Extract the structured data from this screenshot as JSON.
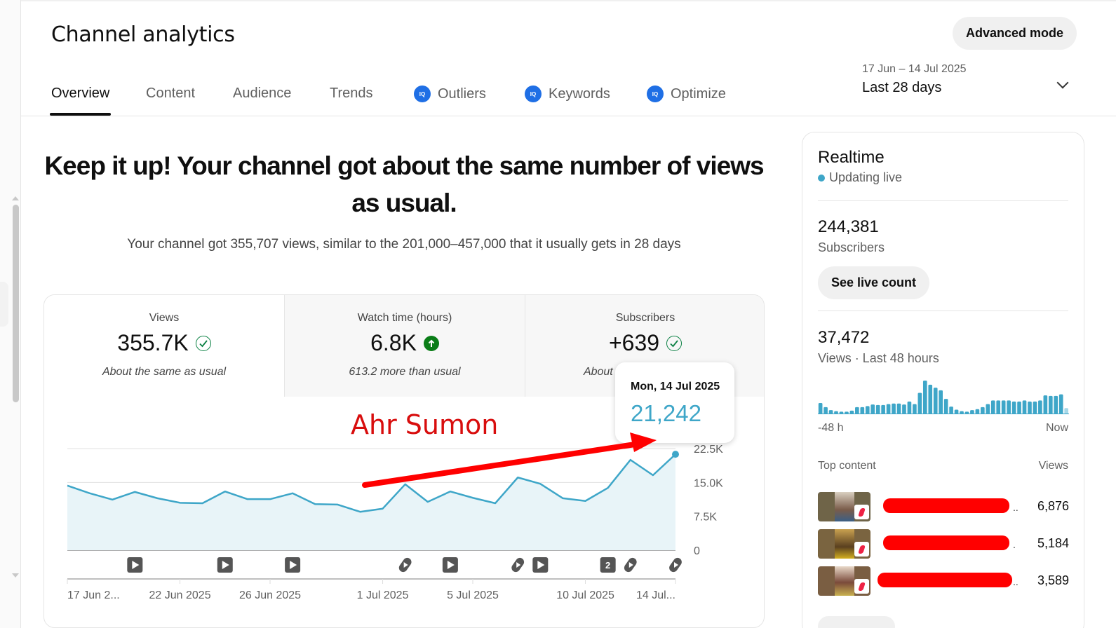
{
  "header": {
    "title": "Channel analytics",
    "advanced_mode_label": "Advanced mode"
  },
  "tabs": [
    {
      "label": "Overview",
      "active": true,
      "vidiq": false
    },
    {
      "label": "Content",
      "active": false,
      "vidiq": false
    },
    {
      "label": "Audience",
      "active": false,
      "vidiq": false
    },
    {
      "label": "Trends",
      "active": false,
      "vidiq": false
    },
    {
      "label": "Outliers",
      "active": false,
      "vidiq": true
    },
    {
      "label": "Keywords",
      "active": false,
      "vidiq": true
    },
    {
      "label": "Optimize",
      "active": false,
      "vidiq": true
    }
  ],
  "vidiq_badge": "IQ",
  "date_picker": {
    "range": "17 Jun – 14 Jul 2025",
    "label": "Last 28 days"
  },
  "summary": {
    "headline": "Keep it up! Your channel got about the same number of views as usual.",
    "subline": "Your channel got 355,707 views, similar to the 201,000–457,000 that it usually gets in 28 days"
  },
  "metrics": [
    {
      "label": "Views",
      "value": "355.7K",
      "status_icon": "check-circle-icon",
      "note": "About the same as usual"
    },
    {
      "label": "Watch time (hours)",
      "value": "6.8K",
      "status_icon": "arrow-up-circle-icon",
      "note": "613.2 more than usual"
    },
    {
      "label": "Subscribers",
      "value": "+639",
      "status_icon": "check-circle-icon",
      "note": "About the same as usual"
    }
  ],
  "tooltip": {
    "date": "Mon, 14 Jul 2025",
    "value": "21,242"
  },
  "watermark": "Ahr Sumon",
  "colors": {
    "line": "#3ea6c8",
    "fill": "#e8f4f8",
    "accent_red": "#ff0000",
    "vidiq_blue": "#1f6fe5",
    "up_green": "#0a7d17"
  },
  "chart_data": {
    "type": "area",
    "title": "Views",
    "xlabel": "",
    "ylabel": "Views",
    "ylim": [
      0,
      22500
    ],
    "yticks": [
      "0",
      "7.5K",
      "15.0K",
      "22.5K"
    ],
    "ytick_values": [
      0,
      7500,
      15000,
      22500
    ],
    "grid": true,
    "x_tick_labels": [
      "17 Jun 2...",
      "22 Jun 2025",
      "26 Jun 2025",
      "1 Jul 2025",
      "5 Jul 2025",
      "10 Jul 2025",
      "14 Jul..."
    ],
    "x_tick_day_index": [
      0,
      5,
      9,
      14,
      18,
      23,
      27
    ],
    "x": [
      "17 Jun",
      "18 Jun",
      "19 Jun",
      "20 Jun",
      "21 Jun",
      "22 Jun",
      "23 Jun",
      "24 Jun",
      "25 Jun",
      "26 Jun",
      "27 Jun",
      "28 Jun",
      "29 Jun",
      "30 Jun",
      "1 Jul",
      "2 Jul",
      "3 Jul",
      "4 Jul",
      "5 Jul",
      "6 Jul",
      "7 Jul",
      "8 Jul",
      "9 Jul",
      "10 Jul",
      "11 Jul",
      "12 Jul",
      "13 Jul",
      "14 Jul"
    ],
    "series": [
      {
        "name": "Views",
        "values": [
          14300,
          12600,
          11200,
          12900,
          11500,
          10500,
          10400,
          13000,
          11300,
          11300,
          12600,
          10200,
          10100,
          8500,
          9200,
          14600,
          10700,
          13000,
          11600,
          10400,
          16100,
          14700,
          11500,
          10900,
          13800,
          20000,
          16600,
          21242
        ]
      }
    ],
    "upload_markers": [
      {
        "day_index": 3,
        "type": "video"
      },
      {
        "day_index": 7,
        "type": "video"
      },
      {
        "day_index": 10,
        "type": "video"
      },
      {
        "day_index": 15,
        "type": "short"
      },
      {
        "day_index": 17,
        "type": "video"
      },
      {
        "day_index": 20,
        "type": "short"
      },
      {
        "day_index": 21,
        "type": "video"
      },
      {
        "day_index": 24,
        "type": "count",
        "label": "2"
      },
      {
        "day_index": 25,
        "type": "short"
      },
      {
        "day_index": 27,
        "type": "short"
      }
    ]
  },
  "realtime": {
    "title": "Realtime",
    "status": "Updating live",
    "subscribers_value": "244,381",
    "subscribers_label": "Subscribers",
    "live_count_label": "See live count",
    "views_value": "37,472",
    "views_label": "Views · Last 48 hours",
    "axis_start": "-48 h",
    "axis_end": "Now",
    "hourly_bars": [
      22,
      14,
      8,
      6,
      5,
      5,
      7,
      14,
      14,
      16,
      19,
      18,
      18,
      20,
      21,
      21,
      19,
      25,
      20,
      42,
      66,
      58,
      52,
      47,
      30,
      15,
      9,
      6,
      5,
      8,
      10,
      14,
      20,
      27,
      27,
      27,
      27,
      25,
      25,
      27,
      25,
      25,
      27,
      37,
      36,
      36,
      39,
      12
    ],
    "top_content_header": "Top content",
    "views_header": "Views",
    "top_content": [
      {
        "title_redacted": true,
        "views": "6,876"
      },
      {
        "title_redacted": true,
        "views": "5,184"
      },
      {
        "title_redacted": true,
        "views": "3,589"
      }
    ]
  }
}
